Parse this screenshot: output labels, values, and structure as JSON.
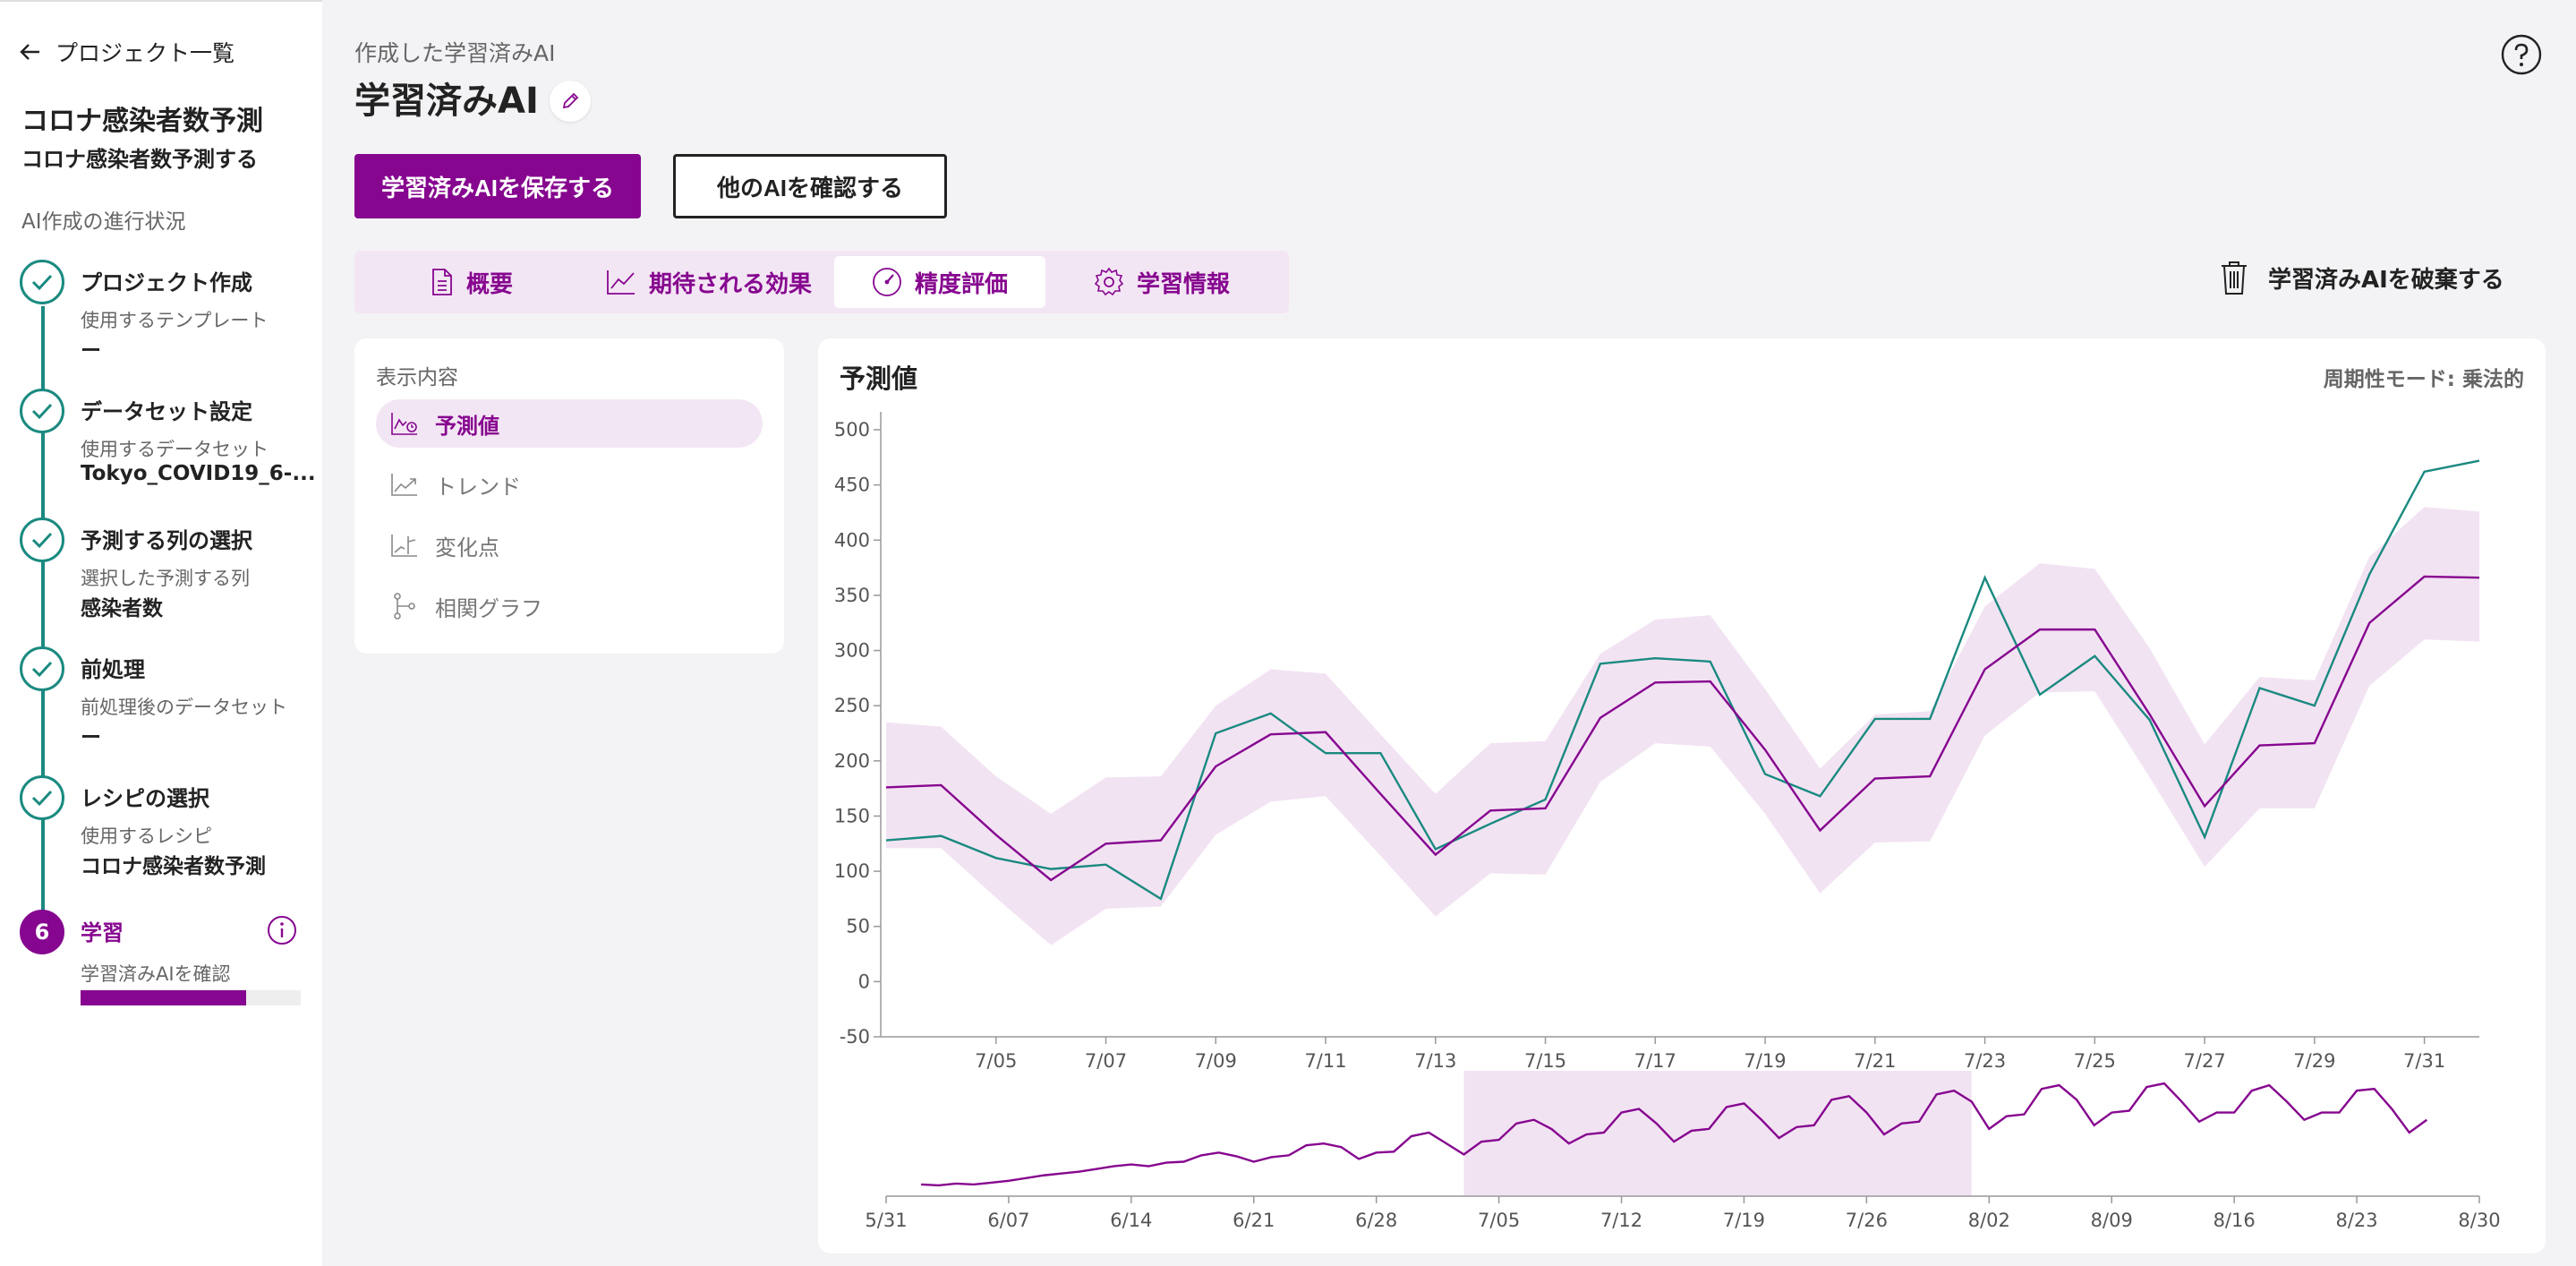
{
  "nav": {
    "back_label": "プロジェクト一覧"
  },
  "project": {
    "title": "コロナ感染者数予測",
    "subtitle": "コロナ感染者数予測する",
    "progress_label": "AI作成の進行状況"
  },
  "steps": [
    {
      "title": "プロジェクト作成",
      "label": "使用するテンプレート",
      "value": "ー",
      "status": "done"
    },
    {
      "title": "データセット設定",
      "label": "使用するデータセット",
      "value": "Tokyo_COVID19_6-...",
      "status": "done"
    },
    {
      "title": "予測する列の選択",
      "label": "選択した予測する列",
      "value": "感染者数",
      "status": "done"
    },
    {
      "title": "前処理",
      "label": "前処理後のデータセット",
      "value": "ー",
      "status": "done"
    },
    {
      "title": "レシピの選択",
      "label": "使用するレシピ",
      "value": "コロナ感染者数予測",
      "status": "done"
    },
    {
      "number": "6",
      "title": "学習",
      "label": "学習済みAIを確認",
      "status": "active",
      "progress": 0.75
    }
  ],
  "header": {
    "breadcrumb": "作成した学習済みAI",
    "title": "学習済みAI",
    "save_button": "学習済みAIを保存する",
    "other_button": "他のAIを確認する",
    "discard_button": "学習済みAIを破棄する"
  },
  "tabs": [
    {
      "label": "概要",
      "icon": "document-icon"
    },
    {
      "label": "期待される効果",
      "icon": "line-chart-icon"
    },
    {
      "label": "精度評価",
      "icon": "gauge-icon",
      "selected": true
    },
    {
      "label": "学習情報",
      "icon": "gear-icon"
    }
  ],
  "display_panel": {
    "title": "表示内容",
    "items": [
      {
        "label": "予測値",
        "active": true
      },
      {
        "label": "トレンド"
      },
      {
        "label": "変化点"
      },
      {
        "label": "相関グラフ"
      }
    ]
  },
  "colors": {
    "brand": "#86068f",
    "accent": "#1a8a80",
    "band": "#f2e3f3"
  },
  "chart_data": {
    "type": "line",
    "title": "予測値",
    "mode_label": "周期性モード: 乗法的",
    "ylim": [
      -50,
      500
    ],
    "yticks": [
      -50,
      0,
      50,
      100,
      150,
      200,
      250,
      300,
      350,
      400,
      450,
      500
    ],
    "x": [
      "7/03",
      "7/04",
      "7/05",
      "7/06",
      "7/07",
      "7/08",
      "7/09",
      "7/10",
      "7/11",
      "7/12",
      "7/13",
      "7/14",
      "7/15",
      "7/16",
      "7/17",
      "7/18",
      "7/19",
      "7/20",
      "7/21",
      "7/22",
      "7/23",
      "7/24",
      "7/25",
      "7/26",
      "7/27",
      "7/28",
      "7/29",
      "7/30",
      "7/31",
      "8/01"
    ],
    "xticks": [
      "7/05",
      "7/07",
      "7/09",
      "7/11",
      "7/13",
      "7/15",
      "7/17",
      "7/19",
      "7/21",
      "7/23",
      "7/25",
      "7/27",
      "7/29",
      "7/31"
    ],
    "series": [
      {
        "color": "#1a8a80",
        "values": [
          128,
          132,
          112,
          102,
          106,
          75,
          225,
          243,
          207,
          207,
          120,
          143,
          165,
          288,
          293,
          290,
          188,
          168,
          238,
          238,
          366,
          260,
          295,
          237,
          131,
          266,
          250,
          369,
          462,
          472
        ]
      },
      {
        "color": "#86068f",
        "values": [
          176,
          178,
          133,
          92,
          125,
          128,
          195,
          224,
          226,
          170,
          115,
          155,
          157,
          239,
          271,
          272,
          210,
          137,
          184,
          186,
          283,
          319,
          319,
          242,
          159,
          214,
          216,
          325,
          367,
          366
        ]
      }
    ],
    "band_upper": [
      235,
      231,
      186,
      152,
      185,
      186,
      250,
      283,
      279,
      224,
      170,
      216,
      218,
      297,
      328,
      332,
      265,
      193,
      242,
      245,
      340,
      379,
      374,
      302,
      215,
      276,
      273,
      385,
      430,
      426
    ],
    "band_lower": [
      121,
      121,
      76,
      33,
      66,
      68,
      133,
      163,
      168,
      114,
      59,
      98,
      97,
      181,
      216,
      213,
      152,
      80,
      126,
      127,
      223,
      262,
      263,
      185,
      104,
      157,
      157,
      268,
      310,
      308
    ],
    "navigator": {
      "xticks": [
        "5/31",
        "6/07",
        "6/14",
        "6/21",
        "6/28",
        "7/05",
        "7/12",
        "7/19",
        "7/26",
        "8/02",
        "8/09",
        "8/16",
        "8/23",
        "8/30"
      ],
      "values": [
        5,
        4,
        6,
        5,
        7,
        9,
        12,
        15,
        17,
        19,
        22,
        25,
        27,
        25,
        29,
        30,
        37,
        40,
        36,
        30,
        35,
        37,
        48,
        50,
        46,
        33,
        40,
        41,
        58,
        62,
        50,
        38,
        52,
        54,
        72,
        76,
        66,
        50,
        60,
        62,
        84,
        88,
        72,
        52,
        64,
        66,
        90,
        94,
        76,
        56,
        68,
        70,
        98,
        102,
        84,
        60,
        72,
        74,
        104,
        108,
        96,
        66,
        80,
        82,
        110,
        114,
        98,
        70,
        84,
        86,
        112,
        116,
        96,
        74,
        84,
        84,
        108,
        114,
        96,
        76,
        84,
        84,
        108,
        110,
        88,
        62,
        76
      ],
      "selected_range": [
        "7/03",
        "8/01"
      ]
    }
  }
}
